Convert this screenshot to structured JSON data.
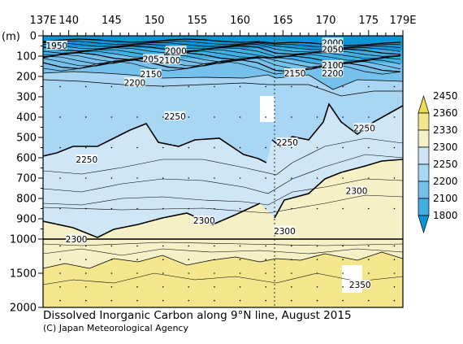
{
  "chart_data": {
    "type": "heatmap",
    "title": "Dissolved Inorganic Carbon along 9°N line, August 2015",
    "credit": "(C) Japan Meteorological Agency",
    "ylabel": "(m)",
    "x_ticks": [
      "137E",
      "140",
      "145",
      "150",
      "155",
      "160",
      "165",
      "170",
      "175",
      "179E"
    ],
    "x_tick_values": [
      137,
      140,
      145,
      150,
      155,
      160,
      165,
      170,
      175,
      179
    ],
    "y_ticks": [
      0,
      100,
      200,
      300,
      400,
      500,
      600,
      700,
      800,
      900,
      1000,
      1500,
      2000
    ],
    "ylim": [
      0,
      2000
    ],
    "xlim": [
      137,
      179
    ],
    "y_break": 1000,
    "colorbar": {
      "levels": [
        "1800",
        "2100",
        "2200",
        "2250",
        "2300",
        "2330",
        "2360",
        "2450"
      ],
      "colors": [
        "#0a96d6",
        "#3fafe4",
        "#76c1ec",
        "#a8d6f3",
        "#cfe6f7",
        "#f6f0c6",
        "#f3e68c",
        "#eddc55"
      ]
    },
    "contour_labels": [
      {
        "text": "1950",
        "lon": 138.6,
        "depth": 50
      },
      {
        "text": "2000",
        "lon": 152.5,
        "depth": 75
      },
      {
        "text": "2050",
        "lon": 149.9,
        "depth": 116
      },
      {
        "text": "2100",
        "lon": 151.8,
        "depth": 122
      },
      {
        "text": "2150",
        "lon": 149.6,
        "depth": 190
      },
      {
        "text": "2200",
        "lon": 147.7,
        "depth": 231
      },
      {
        "text": "2000",
        "lon": 170.8,
        "depth": 35
      },
      {
        "text": "2050",
        "lon": 170.8,
        "depth": 67
      },
      {
        "text": "2100",
        "lon": 170.8,
        "depth": 146
      },
      {
        "text": "2200",
        "lon": 170.8,
        "depth": 186
      },
      {
        "text": "2150",
        "lon": 166.4,
        "depth": 186
      },
      {
        "text": "2250",
        "lon": 152.4,
        "depth": 397
      },
      {
        "text": "2250",
        "lon": 165.5,
        "depth": 526
      },
      {
        "text": "2250",
        "lon": 174.5,
        "depth": 455
      },
      {
        "text": "2250",
        "lon": 142.1,
        "depth": 610
      },
      {
        "text": "2300",
        "lon": 173.6,
        "depth": 764
      },
      {
        "text": "2300",
        "lon": 155.8,
        "depth": 910
      },
      {
        "text": "2300",
        "lon": 165.2,
        "depth": 961
      },
      {
        "text": "2300",
        "lon": 140.9,
        "depth": 1004
      },
      {
        "text": "2350",
        "lon": 174.0,
        "depth": 1675
      }
    ]
  }
}
